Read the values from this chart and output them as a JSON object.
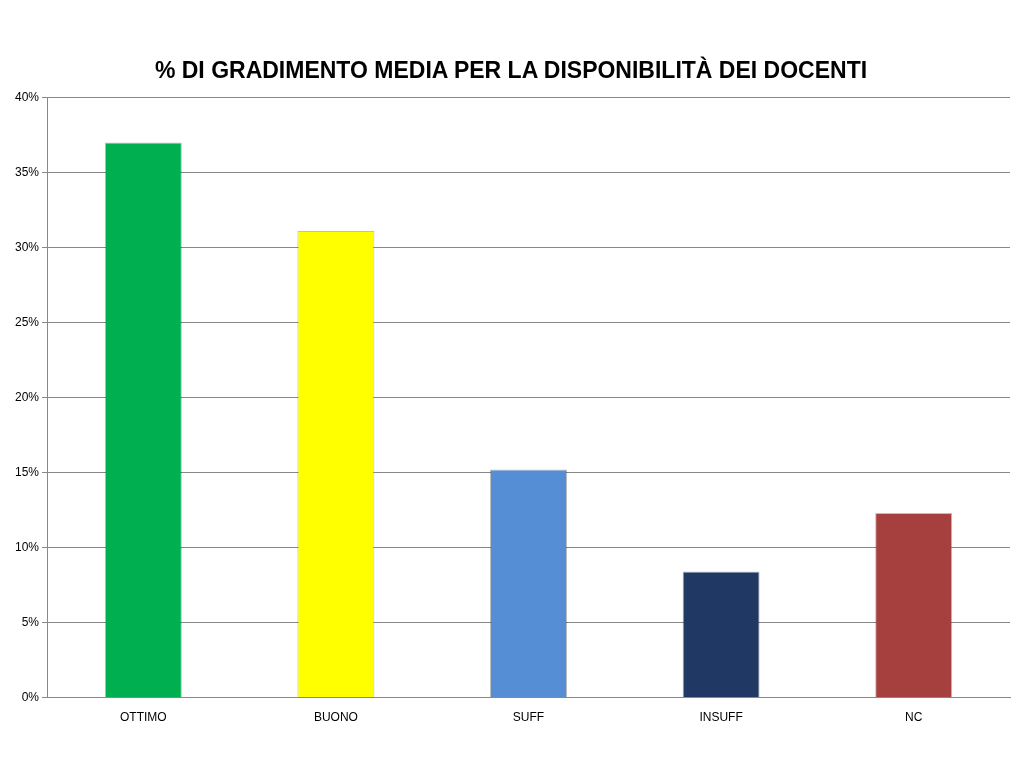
{
  "chart_data": {
    "type": "bar",
    "title": "% DI GRADIMENTO MEDIA PER LA DISPONIBILITÀ DEI DOCENTI",
    "categories": [
      "OTTIMO",
      "BUONO",
      "SUFF",
      "INSUFF",
      "NC"
    ],
    "values": [
      37.0,
      31.1,
      15.2,
      8.4,
      12.3
    ],
    "colors": [
      "#00b050",
      "#ffff00",
      "#558ed5",
      "#1f3864",
      "#a5403f"
    ],
    "ylim": [
      0,
      40
    ],
    "yticks": [
      {
        "value": 0,
        "label": "0%"
      },
      {
        "value": 5,
        "label": "5%"
      },
      {
        "value": 10,
        "label": "10%"
      },
      {
        "value": 15,
        "label": "15%"
      },
      {
        "value": 20,
        "label": "20%"
      },
      {
        "value": 25,
        "label": "25%"
      },
      {
        "value": 30,
        "label": "30%"
      },
      {
        "value": 35,
        "label": "35%"
      },
      {
        "value": 40,
        "label": "40%"
      }
    ],
    "grid": "y",
    "legend": false
  }
}
